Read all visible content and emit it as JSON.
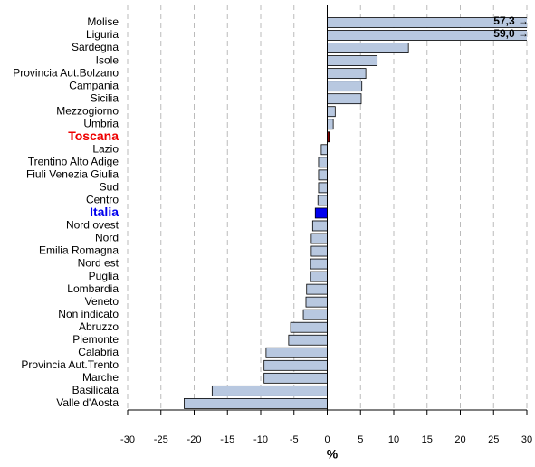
{
  "chart_data": {
    "type": "bar",
    "orientation": "horizontal",
    "categories": [
      "Molise",
      "Liguria",
      "Sardegna",
      "Isole",
      "Provincia Aut.Bolzano",
      "Campania",
      "Sicilia",
      "Mezzogiorno",
      "Umbria",
      "Toscana",
      "Lazio",
      "Trentino Alto Adige",
      "Fiuli Venezia Giulia",
      "Sud",
      "Centro",
      "Italia",
      "Nord ovest",
      "Nord",
      "Emilia Romagna",
      "Nord est",
      "Puglia",
      "Lombardia",
      "Veneto",
      "Non indicato",
      "Abruzzo",
      "Piemonte",
      "Calabria",
      "Provincia Aut.Trento",
      "Marche",
      "Basilicata",
      "Valle d'Aosta"
    ],
    "values": [
      57.3,
      59.0,
      12.2,
      7.5,
      5.8,
      5.2,
      5.1,
      1.2,
      0.9,
      0.3,
      -0.9,
      -1.3,
      -1.3,
      -1.3,
      -1.4,
      -1.8,
      -2.2,
      -2.4,
      -2.4,
      -2.5,
      -2.5,
      -3.1,
      -3.2,
      -3.6,
      -5.5,
      -5.8,
      -9.2,
      -9.5,
      -9.5,
      -17.3,
      -21.5
    ],
    "value_labels": [
      "57,3 →",
      "59,0 →",
      null,
      null,
      null,
      null,
      null,
      null,
      null,
      null,
      null,
      null,
      null,
      null,
      null,
      null,
      null,
      null,
      null,
      null,
      null,
      null,
      null,
      null,
      null,
      null,
      null,
      null,
      null,
      null,
      null
    ],
    "bar_colors": [
      "#b8c8e0",
      "#b8c8e0",
      "#b8c8e0",
      "#b8c8e0",
      "#b8c8e0",
      "#b8c8e0",
      "#b8c8e0",
      "#b8c8e0",
      "#b8c8e0",
      "#8b0000",
      "#b8c8e0",
      "#b8c8e0",
      "#b8c8e0",
      "#b8c8e0",
      "#b8c8e0",
      "#0000ee",
      "#b8c8e0",
      "#b8c8e0",
      "#b8c8e0",
      "#b8c8e0",
      "#b8c8e0",
      "#b8c8e0",
      "#b8c8e0",
      "#b8c8e0",
      "#b8c8e0",
      "#b8c8e0",
      "#b8c8e0",
      "#b8c8e0",
      "#b8c8e0",
      "#b8c8e0",
      "#b8c8e0"
    ],
    "label_colors": [
      "#000",
      "#000",
      "#000",
      "#000",
      "#000",
      "#000",
      "#000",
      "#000",
      "#000",
      "#ee0000",
      "#000",
      "#000",
      "#000",
      "#000",
      "#000",
      "#0000ee",
      "#000",
      "#000",
      "#000",
      "#000",
      "#000",
      "#000",
      "#000",
      "#000",
      "#000",
      "#000",
      "#000",
      "#000",
      "#000",
      "#000",
      "#000"
    ],
    "xlabel": "%",
    "xlim": [
      -30,
      30
    ],
    "xticks": [
      -30,
      -25,
      -20,
      -15,
      -10,
      -5,
      0,
      5,
      10,
      15,
      20,
      25,
      30
    ],
    "grid": true
  }
}
